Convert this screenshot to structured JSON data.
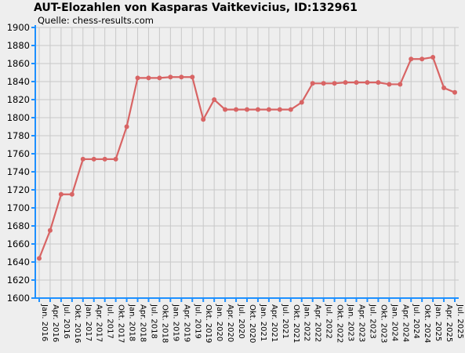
{
  "chart_data": {
    "type": "line",
    "title": "AUT-Elozahlen von Kasparas Vaitkevicius, ID:132961",
    "subtitle": "Quelle: chess-results.com",
    "xlabel": "",
    "ylabel": "",
    "ylim": [
      1600,
      1900
    ],
    "yticks": [
      1600,
      1620,
      1640,
      1660,
      1680,
      1700,
      1720,
      1740,
      1760,
      1780,
      1800,
      1820,
      1840,
      1860,
      1880,
      1900
    ],
    "grid": true,
    "categories": [
      "Jan. 2016",
      "Apr. 2016",
      "Jul. 2016",
      "Okt. 2016",
      "Jan. 2017",
      "Apr. 2017",
      "Jul. 2017",
      "Okt. 2017",
      "Jan. 2018",
      "Apr. 2018",
      "Jul. 2018",
      "Okt. 2018",
      "Jan. 2019",
      "Apr. 2019",
      "Jul. 2019",
      "Okt. 2019",
      "Jan. 2020",
      "Apr. 2020",
      "Jul. 2020",
      "Okt. 2020",
      "Jan. 2021",
      "Apr. 2021",
      "Jul. 2021",
      "Okt. 2021",
      "Jan. 2022",
      "Apr. 2022",
      "Jul. 2022",
      "Okt. 2022",
      "Jan. 2023",
      "Apr. 2023",
      "Jul. 2023",
      "Okt. 2023",
      "Jan. 2024",
      "Apr. 2024",
      "Jul. 2024",
      "Okt. 2024",
      "Jan. 2025",
      "Apr. 2025",
      "Jul. 2025"
    ],
    "series": [
      {
        "color": "#d86464",
        "values": [
          1644,
          1675,
          1715,
          1715,
          1754,
          1754,
          1754,
          1754,
          1790,
          1844,
          1844,
          1844,
          1845,
          1845,
          1845,
          1798,
          1820,
          1809,
          1809,
          1809,
          1809,
          1809,
          1809,
          1809,
          1817,
          1838,
          1838,
          1838,
          1839,
          1839,
          1839,
          1839,
          1837,
          1837,
          1865,
          1865,
          1867,
          1833,
          1828
        ]
      }
    ]
  },
  "colors": {
    "background": "#eeeeee",
    "grid": "#c8c8c8",
    "axis": "#1e90ff",
    "line": "#d86464"
  }
}
